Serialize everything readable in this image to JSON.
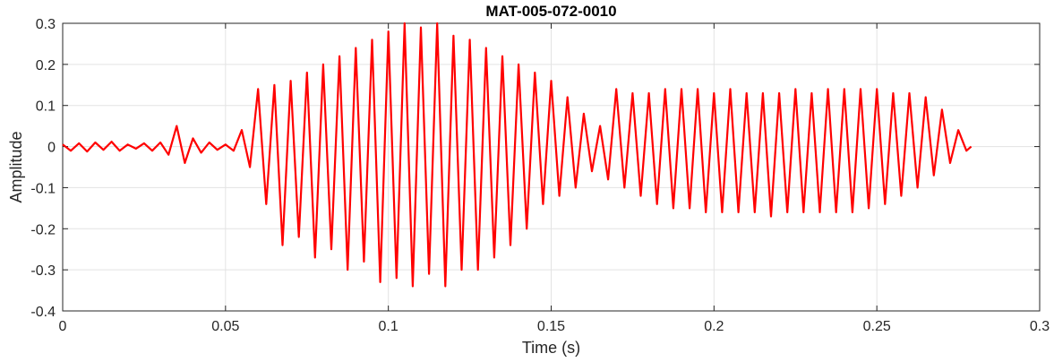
{
  "chart_data": {
    "type": "line",
    "title": "MAT-005-072-0010",
    "xlabel": "Time (s)",
    "ylabel": "Amplitude",
    "xlim": [
      0,
      0.3
    ],
    "ylim": [
      -0.4,
      0.3
    ],
    "xticks": [
      0,
      0.05,
      0.1,
      0.15,
      0.2,
      0.25,
      0.3
    ],
    "xtick_labels": [
      "0",
      "0.05",
      "0.1",
      "0.15",
      "0.2",
      "0.25",
      "0.3"
    ],
    "yticks": [
      -0.4,
      -0.3,
      -0.2,
      -0.1,
      0,
      0.1,
      0.2,
      0.3
    ],
    "ytick_labels": [
      "-0.4",
      "-0.3",
      "-0.2",
      "-0.1",
      "0",
      "0.1",
      "0.2",
      "0.3"
    ],
    "grid": true,
    "line_color": "#ff0000",
    "series": [
      {
        "x": [
          0,
          0.0025,
          0.005,
          0.0075,
          0.01,
          0.0125,
          0.015,
          0.0175,
          0.02,
          0.0225,
          0.025,
          0.0275,
          0.03,
          0.0325,
          0.035,
          0.0375,
          0.04,
          0.0425,
          0.045,
          0.0475,
          0.05,
          0.0525,
          0.055,
          0.0575,
          0.06,
          0.0625,
          0.065,
          0.0675,
          0.07,
          0.0725,
          0.075,
          0.0775,
          0.08,
          0.0825,
          0.085,
          0.0875,
          0.09,
          0.0925,
          0.095,
          0.0975,
          0.1,
          0.1025,
          0.105,
          0.1075,
          0.11,
          0.1125,
          0.115,
          0.1175,
          0.12,
          0.1225,
          0.125,
          0.1275,
          0.13,
          0.1325,
          0.135,
          0.1375,
          0.14,
          0.1425,
          0.145,
          0.1475,
          0.15,
          0.1525,
          0.155,
          0.1575,
          0.16,
          0.1625,
          0.165,
          0.1675,
          0.17,
          0.1725,
          0.175,
          0.1775,
          0.18,
          0.1825,
          0.185,
          0.1875,
          0.19,
          0.1925,
          0.195,
          0.1975,
          0.2,
          0.2025,
          0.205,
          0.2075,
          0.21,
          0.2125,
          0.215,
          0.2175,
          0.22,
          0.2225,
          0.225,
          0.2275,
          0.23,
          0.2325,
          0.235,
          0.2375,
          0.24,
          0.2425,
          0.245,
          0.2475,
          0.25,
          0.2525,
          0.255,
          0.2575,
          0.26,
          0.2625,
          0.265,
          0.2675,
          0.27,
          0.2725,
          0.275,
          0.2775,
          0.279
        ],
        "y": [
          0.005,
          -0.01,
          0.008,
          -0.012,
          0.01,
          -0.008,
          0.012,
          -0.01,
          0.005,
          -0.005,
          0.008,
          -0.01,
          0.01,
          -0.02,
          0.05,
          -0.04,
          0.02,
          -0.015,
          0.01,
          -0.008,
          0.005,
          -0.01,
          0.04,
          -0.05,
          0.14,
          -0.14,
          0.15,
          -0.24,
          0.16,
          -0.22,
          0.18,
          -0.27,
          0.2,
          -0.25,
          0.22,
          -0.3,
          0.24,
          -0.28,
          0.26,
          -0.33,
          0.28,
          -0.32,
          0.3,
          -0.34,
          0.29,
          -0.31,
          0.3,
          -0.34,
          0.27,
          -0.3,
          0.26,
          -0.3,
          0.24,
          -0.27,
          0.22,
          -0.24,
          0.2,
          -0.2,
          0.18,
          -0.14,
          0.16,
          -0.12,
          0.12,
          -0.1,
          0.08,
          -0.06,
          0.05,
          -0.08,
          0.14,
          -0.1,
          0.13,
          -0.12,
          0.13,
          -0.14,
          0.14,
          -0.15,
          0.14,
          -0.15,
          0.14,
          -0.16,
          0.13,
          -0.16,
          0.14,
          -0.16,
          0.13,
          -0.16,
          0.13,
          -0.17,
          0.13,
          -0.16,
          0.14,
          -0.16,
          0.13,
          -0.16,
          0.14,
          -0.16,
          0.14,
          -0.16,
          0.14,
          -0.15,
          0.14,
          -0.14,
          0.13,
          -0.12,
          0.13,
          -0.1,
          0.12,
          -0.07,
          0.09,
          -0.04,
          0.04,
          -0.01,
          0.0
        ]
      }
    ]
  }
}
